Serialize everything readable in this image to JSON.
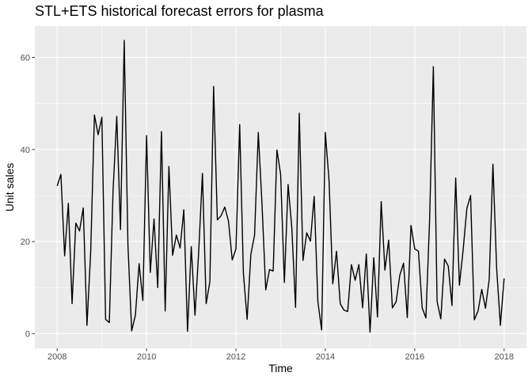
{
  "chart_data": {
    "type": "line",
    "title": "STL+ETS historical forecast errors for plasma",
    "xlabel": "Time",
    "ylabel": "Unit sales",
    "xlim": [
      2007.5,
      2018.5
    ],
    "ylim": [
      -3.2,
      66.8
    ],
    "x_ticks": [
      2008,
      2010,
      2012,
      2014,
      2016,
      2018
    ],
    "x_tick_labels": [
      "2008",
      "2010",
      "2012",
      "2014",
      "2016",
      "2018"
    ],
    "y_ticks": [
      0,
      20,
      40,
      60
    ],
    "y_tick_labels": [
      "0",
      "20",
      "40",
      "60"
    ],
    "grid": true,
    "panel_background": "#ebebeb",
    "grid_color": "#ffffff",
    "line_color": "#000000",
    "series": [
      {
        "x_start": 2008,
        "x_step": 0.0833333,
        "values": [
          32.1,
          34.6,
          16.9,
          28.3,
          6.5,
          24.0,
          22.3,
          27.3,
          1.8,
          17.8,
          47.5,
          43.2,
          47.0,
          3.1,
          2.4,
          31.0,
          47.2,
          22.6,
          63.7,
          19.2,
          0.6,
          4.0,
          15.2,
          7.2,
          43.0,
          13.3,
          24.9,
          10.0,
          43.9,
          4.9,
          36.3,
          17.0,
          21.4,
          18.6,
          26.9,
          0.5,
          18.9,
          4.0,
          17.8,
          34.8,
          6.5,
          11.3,
          53.7,
          24.7,
          25.6,
          27.5,
          24.4,
          16.0,
          18.4,
          45.4,
          13.1,
          3.1,
          17.2,
          21.4,
          43.7,
          28.0,
          9.5,
          13.9,
          13.6,
          39.9,
          34.6,
          11.1,
          32.4,
          23.0,
          5.7,
          47.9,
          15.9,
          21.9,
          20.1,
          29.8,
          6.9,
          0.8,
          43.7,
          33.2,
          10.8,
          17.9,
          6.5,
          5.1,
          4.8,
          15.0,
          11.6,
          15.0,
          5.6,
          17.3,
          0.3,
          16.5,
          3.6,
          28.7,
          13.8,
          20.3,
          5.6,
          6.9,
          12.7,
          15.3,
          3.5,
          23.5,
          18.4,
          17.9,
          5.6,
          3.4,
          24.8,
          58.0,
          7.0,
          3.2,
          16.2,
          14.7,
          6.1,
          33.8,
          10.5,
          18.2,
          27.2,
          30.0,
          3.0,
          4.9,
          9.6,
          5.5,
          11.8,
          36.8,
          14.1,
          1.8,
          12.0
        ]
      }
    ]
  }
}
